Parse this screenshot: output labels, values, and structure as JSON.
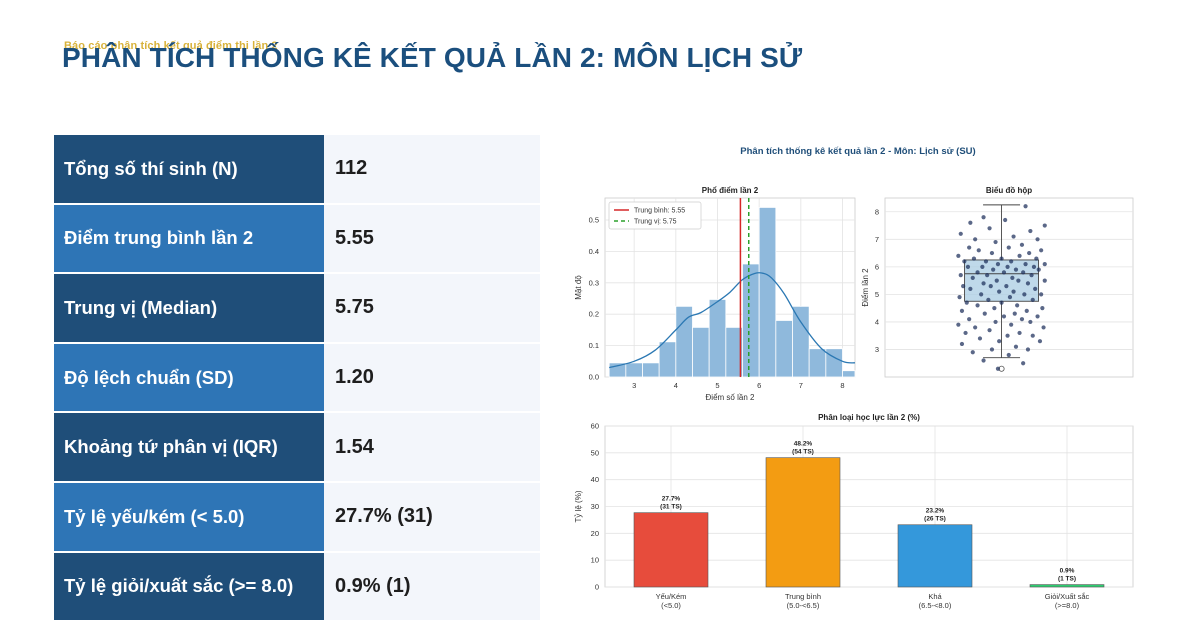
{
  "header": {
    "subtitle": "Báo cáo phân tích kết quả điểm thi lần 2",
    "title": "PHÂN TÍCH THỐNG KÊ KẾT QUẢ LẦN 2: MÔN LỊCH SỬ"
  },
  "stats": [
    {
      "label": "Tổng số thí sinh (N)",
      "value": "112"
    },
    {
      "label": "Điểm trung bình lần 2",
      "value": "5.55"
    },
    {
      "label": "Trung vị (Median)",
      "value": "5.75"
    },
    {
      "label": "Độ lệch chuẩn (SD)",
      "value": "1.20"
    },
    {
      "label": "Khoảng tứ phân vị (IQR)",
      "value": "1.54"
    },
    {
      "label": "Tỷ lệ yếu/kém (< 5.0)",
      "value": "27.7% (31)"
    },
    {
      "label": "Tỷ lệ giỏi/xuất sắc (>= 8.0)",
      "value": "0.9% (1)"
    }
  ],
  "figure": {
    "suptitle": "Phân tích thống kê kết quả lần 2 - Môn: Lịch sử (SU)"
  },
  "colors": {
    "hist_fill": "#8fb9dc",
    "kde_line": "#2b78b3",
    "mean_line": "#d62728",
    "median_line": "#2ca02c",
    "box_fill": "#a9cce3",
    "dots": "#1c2e5a",
    "bar_weak": "#e74c3c",
    "bar_average": "#f39c12",
    "bar_good": "#3498db",
    "bar_excellent": "#2ecc71"
  },
  "chart_data": [
    {
      "type": "bar",
      "title": "Phổ điểm lần 2",
      "xlabel": "Điểm số lần 2",
      "ylabel": "Mật độ",
      "bins": [
        {
          "x0": 2.4,
          "x1": 2.8,
          "density": 0.045
        },
        {
          "x0": 2.8,
          "x1": 3.2,
          "density": 0.045
        },
        {
          "x0": 3.2,
          "x1": 3.6,
          "density": 0.045
        },
        {
          "x0": 3.6,
          "x1": 4.0,
          "density": 0.112
        },
        {
          "x0": 4.0,
          "x1": 4.4,
          "density": 0.225
        },
        {
          "x0": 4.4,
          "x1": 4.8,
          "density": 0.158
        },
        {
          "x0": 4.8,
          "x1": 5.2,
          "density": 0.247
        },
        {
          "x0": 5.2,
          "x1": 5.6,
          "density": 0.158
        },
        {
          "x0": 5.6,
          "x1": 6.0,
          "density": 0.36
        },
        {
          "x0": 6.0,
          "x1": 6.4,
          "density": 0.54
        },
        {
          "x0": 6.4,
          "x1": 6.8,
          "density": 0.18
        },
        {
          "x0": 6.8,
          "x1": 7.2,
          "density": 0.225
        },
        {
          "x0": 7.2,
          "x1": 7.6,
          "density": 0.09
        },
        {
          "x0": 7.6,
          "x1": 8.0,
          "density": 0.09
        },
        {
          "x0": 8.0,
          "x1": 8.3,
          "density": 0.02
        }
      ],
      "kde": {
        "x": [
          2.4,
          3.0,
          3.5,
          4.0,
          4.3,
          4.6,
          5.0,
          5.3,
          5.6,
          5.9,
          6.1,
          6.3,
          6.6,
          7.0,
          7.5,
          8.0,
          8.3
        ],
        "y": [
          0.03,
          0.05,
          0.085,
          0.15,
          0.19,
          0.205,
          0.24,
          0.27,
          0.31,
          0.33,
          0.33,
          0.315,
          0.265,
          0.175,
          0.09,
          0.05,
          0.045
        ]
      },
      "mean": {
        "value": 5.55,
        "label": "Trung bình: 5.55"
      },
      "median": {
        "value": 5.75,
        "label": "Trung vị: 5.75"
      },
      "xlim": [
        2.3,
        8.3
      ],
      "ylim": [
        0,
        0.57
      ],
      "xticks": [
        3,
        4,
        5,
        6,
        7,
        8
      ],
      "yticks": [
        0.0,
        0.1,
        0.2,
        0.3,
        0.4,
        0.5
      ],
      "legend_position": "top-left",
      "grid": true
    },
    {
      "type": "scatter",
      "title": "Biểu đồ hộp",
      "ylabel": "Điểm lần 2",
      "ylim": [
        2.0,
        8.5
      ],
      "yticks": [
        3,
        4,
        5,
        6,
        7,
        8
      ],
      "box": {
        "q1": 4.75,
        "median": 5.75,
        "q3": 6.25,
        "whisker_low": 2.7,
        "whisker_high": 8.25
      },
      "outliers": [
        2.3
      ],
      "points": [
        [
          -0.03,
          2.3
        ],
        [
          0.18,
          2.5
        ],
        [
          -0.15,
          2.6
        ],
        [
          0.06,
          2.8
        ],
        [
          -0.24,
          2.9
        ],
        [
          0.22,
          3.0
        ],
        [
          -0.08,
          3.0
        ],
        [
          0.12,
          3.1
        ],
        [
          -0.33,
          3.2
        ],
        [
          0.32,
          3.3
        ],
        [
          -0.02,
          3.3
        ],
        [
          -0.18,
          3.4
        ],
        [
          0.26,
          3.5
        ],
        [
          0.05,
          3.5
        ],
        [
          -0.3,
          3.6
        ],
        [
          0.15,
          3.6
        ],
        [
          -0.1,
          3.7
        ],
        [
          0.35,
          3.8
        ],
        [
          -0.22,
          3.8
        ],
        [
          0.08,
          3.9
        ],
        [
          -0.36,
          3.9
        ],
        [
          0.24,
          4.0
        ],
        [
          -0.05,
          4.0
        ],
        [
          0.17,
          4.1
        ],
        [
          -0.27,
          4.1
        ],
        [
          0.02,
          4.2
        ],
        [
          0.3,
          4.2
        ],
        [
          -0.14,
          4.3
        ],
        [
          0.11,
          4.3
        ],
        [
          -0.33,
          4.4
        ],
        [
          0.21,
          4.4
        ],
        [
          -0.06,
          4.5
        ],
        [
          0.34,
          4.5
        ],
        [
          -0.2,
          4.6
        ],
        [
          0.13,
          4.6
        ],
        [
          0.0,
          4.7
        ],
        [
          -0.29,
          4.7
        ],
        [
          0.26,
          4.8
        ],
        [
          -0.11,
          4.8
        ],
        [
          0.07,
          4.9
        ],
        [
          -0.35,
          4.9
        ],
        [
          0.19,
          5.0
        ],
        [
          -0.17,
          5.0
        ],
        [
          0.33,
          5.0
        ],
        [
          -0.02,
          5.1
        ],
        [
          0.1,
          5.1
        ],
        [
          -0.26,
          5.2
        ],
        [
          0.28,
          5.2
        ],
        [
          -0.09,
          5.3
        ],
        [
          0.04,
          5.3
        ],
        [
          -0.32,
          5.3
        ],
        [
          0.22,
          5.4
        ],
        [
          -0.15,
          5.4
        ],
        [
          0.14,
          5.5
        ],
        [
          -0.04,
          5.5
        ],
        [
          0.36,
          5.5
        ],
        [
          -0.24,
          5.6
        ],
        [
          0.09,
          5.6
        ],
        [
          0.25,
          5.7
        ],
        [
          -0.12,
          5.7
        ],
        [
          -0.34,
          5.7
        ],
        [
          0.02,
          5.8
        ],
        [
          0.18,
          5.8
        ],
        [
          -0.2,
          5.8
        ],
        [
          0.31,
          5.9
        ],
        [
          -0.07,
          5.9
        ],
        [
          0.12,
          5.9
        ],
        [
          -0.28,
          6.0
        ],
        [
          0.05,
          6.0
        ],
        [
          0.27,
          6.0
        ],
        [
          -0.16,
          6.0
        ],
        [
          0.36,
          6.1
        ],
        [
          -0.03,
          6.1
        ],
        [
          0.2,
          6.1
        ],
        [
          -0.31,
          6.2
        ],
        [
          0.08,
          6.2
        ],
        [
          -0.13,
          6.2
        ],
        [
          0.29,
          6.3
        ],
        [
          -0.23,
          6.3
        ],
        [
          0.0,
          6.3
        ],
        [
          0.15,
          6.4
        ],
        [
          -0.36,
          6.4
        ],
        [
          -0.08,
          6.5
        ],
        [
          0.23,
          6.5
        ],
        [
          -0.19,
          6.6
        ],
        [
          0.33,
          6.6
        ],
        [
          0.06,
          6.7
        ],
        [
          -0.27,
          6.7
        ],
        [
          0.17,
          6.8
        ],
        [
          -0.05,
          6.9
        ],
        [
          0.3,
          7.0
        ],
        [
          -0.22,
          7.0
        ],
        [
          0.1,
          7.1
        ],
        [
          -0.34,
          7.2
        ],
        [
          0.24,
          7.3
        ],
        [
          -0.1,
          7.4
        ],
        [
          0.36,
          7.5
        ],
        [
          -0.26,
          7.6
        ],
        [
          0.03,
          7.7
        ],
        [
          -0.15,
          7.8
        ],
        [
          0.2,
          8.2
        ]
      ],
      "grid": true
    },
    {
      "type": "bar",
      "title": "Phân loại học lực lần 2 (%)",
      "ylabel": "Tỷ lệ (%)",
      "ylim": [
        0,
        60
      ],
      "yticks": [
        0,
        10,
        20,
        30,
        40,
        50,
        60
      ],
      "categories": [
        {
          "name": "Yếu/Kém",
          "range": "(<5.0)",
          "value": 27.7,
          "label_pct": "27.7%",
          "label_count": "(31 TS)",
          "color": "#e74c3c"
        },
        {
          "name": "Trung bình",
          "range": "(5.0-<6.5)",
          "value": 48.2,
          "label_pct": "48.2%",
          "label_count": "(54 TS)",
          "color": "#f39c12"
        },
        {
          "name": "Khá",
          "range": "(6.5-<8.0)",
          "value": 23.2,
          "label_pct": "23.2%",
          "label_count": "(26 TS)",
          "color": "#3498db"
        },
        {
          "name": "Giỏi/Xuất sắc",
          "range": "(>=8.0)",
          "value": 0.9,
          "label_pct": "0.9%",
          "label_count": "(1 TS)",
          "color": "#2ecc71"
        }
      ],
      "grid": true
    }
  ]
}
